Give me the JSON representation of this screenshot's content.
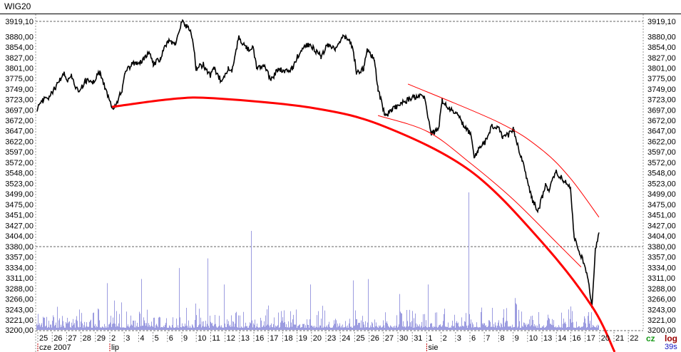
{
  "chart_data": {
    "type": "line",
    "title": "WIG20",
    "scale": "log",
    "ylim": [
      3200.0,
      3919.1
    ],
    "y_tick_labels": [
      "3919,10",
      "3880,00",
      "3854,00",
      "3827,00",
      "3801,00",
      "3775,00",
      "3749,00",
      "3723,00",
      "3697,00",
      "3672,00",
      "3647,00",
      "3622,00",
      "3597,00",
      "3572,00",
      "3548,00",
      "3523,00",
      "3499,00",
      "3475,00",
      "3451,00",
      "3427,00",
      "3404,00",
      "3380,00",
      "3357,00",
      "3334,00",
      "3311,00",
      "3288,00",
      "3266,00",
      "3243,00",
      "3221,00",
      "3200,00"
    ],
    "y_tick_values": [
      3919.1,
      3880,
      3854,
      3827,
      3801,
      3775,
      3749,
      3723,
      3697,
      3672,
      3647,
      3622,
      3597,
      3572,
      3548,
      3523,
      3499,
      3475,
      3451,
      3427,
      3404,
      3380,
      3357,
      3334,
      3311,
      3288,
      3266,
      3243,
      3221,
      3200
    ],
    "reference_lines": [
      3919.1,
      3380
    ],
    "x_day_labels": [
      "25",
      "26",
      "27",
      "28",
      "29",
      "2",
      "3",
      "4",
      "5",
      "6",
      "9",
      "10",
      "11",
      "12",
      "13",
      "16",
      "17",
      "18",
      "19",
      "20",
      "23",
      "24",
      "25",
      "26",
      "27",
      "30",
      "31",
      "1",
      "2",
      "3",
      "6",
      "7",
      "8",
      "9",
      "10",
      "13",
      "14",
      "16",
      "17",
      "20",
      "21",
      "22"
    ],
    "x_month_labels": [
      {
        "day_index": 0,
        "label": "cze 2007"
      },
      {
        "day_index": 5,
        "label": "lip"
      },
      {
        "day_index": 27,
        "label": "sie"
      }
    ],
    "price_series": [
      [
        -0.25,
        3700
      ],
      [
        0.15,
        3720
      ],
      [
        0.64,
        3730
      ],
      [
        1.14,
        3760
      ],
      [
        1.63,
        3790
      ],
      [
        1.88,
        3770
      ],
      [
        2.13,
        3780
      ],
      [
        2.62,
        3740
      ],
      [
        3.12,
        3770
      ],
      [
        3.61,
        3765
      ],
      [
        4.11,
        3790
      ],
      [
        4.6,
        3740
      ],
      [
        4.95,
        3700
      ],
      [
        5.35,
        3720
      ],
      [
        5.69,
        3750
      ],
      [
        5.84,
        3790
      ],
      [
        6.34,
        3810
      ],
      [
        7.08,
        3820
      ],
      [
        7.57,
        3840
      ],
      [
        7.82,
        3810
      ],
      [
        8.32,
        3825
      ],
      [
        8.81,
        3870
      ],
      [
        9.31,
        3860
      ],
      [
        9.8,
        3919
      ],
      [
        10.3,
        3900
      ],
      [
        10.54,
        3880
      ],
      [
        10.79,
        3800
      ],
      [
        11.29,
        3810
      ],
      [
        11.78,
        3780
      ],
      [
        12.03,
        3800
      ],
      [
        12.52,
        3770
      ],
      [
        13.02,
        3800
      ],
      [
        13.27,
        3790
      ],
      [
        13.76,
        3880
      ],
      [
        14.26,
        3850
      ],
      [
        14.75,
        3850
      ],
      [
        15.0,
        3800
      ],
      [
        15.5,
        3810
      ],
      [
        15.99,
        3770
      ],
      [
        16.49,
        3800
      ],
      [
        16.98,
        3790
      ],
      [
        17.48,
        3800
      ],
      [
        17.97,
        3840
      ],
      [
        18.47,
        3860
      ],
      [
        18.96,
        3850
      ],
      [
        19.46,
        3830
      ],
      [
        19.95,
        3860
      ],
      [
        20.45,
        3850
      ],
      [
        20.94,
        3880
      ],
      [
        21.44,
        3870
      ],
      [
        21.68,
        3850
      ],
      [
        21.93,
        3790
      ],
      [
        22.43,
        3800
      ],
      [
        22.67,
        3850
      ],
      [
        23.17,
        3820
      ],
      [
        23.42,
        3750
      ],
      [
        23.91,
        3680
      ],
      [
        24.41,
        3700
      ],
      [
        24.9,
        3710
      ],
      [
        25.4,
        3720
      ],
      [
        25.89,
        3730
      ],
      [
        26.63,
        3730
      ],
      [
        27.13,
        3640
      ],
      [
        27.62,
        3650
      ],
      [
        27.87,
        3720
      ],
      [
        28.37,
        3700
      ],
      [
        28.86,
        3690
      ],
      [
        29.36,
        3660
      ],
      [
        29.85,
        3640
      ],
      [
        30.1,
        3580
      ],
      [
        30.35,
        3600
      ],
      [
        30.84,
        3620
      ],
      [
        31.34,
        3660
      ],
      [
        31.83,
        3650
      ],
      [
        32.08,
        3630
      ],
      [
        32.57,
        3640
      ],
      [
        32.82,
        3650
      ],
      [
        33.32,
        3590
      ],
      [
        33.81,
        3530
      ],
      [
        34.06,
        3490
      ],
      [
        34.55,
        3460
      ],
      [
        35.05,
        3520
      ],
      [
        35.3,
        3510
      ],
      [
        35.79,
        3550
      ],
      [
        36.29,
        3530
      ],
      [
        36.78,
        3515
      ],
      [
        37.03,
        3400
      ],
      [
        37.52,
        3360
      ],
      [
        38.02,
        3310
      ],
      [
        38.27,
        3250
      ],
      [
        38.51,
        3370
      ],
      [
        38.76,
        3410
      ]
    ],
    "trend_curves": [
      {
        "name": "main-trend",
        "points": [
          [
            4.95,
            3705
          ],
          [
            9.06,
            3724
          ],
          [
            12.03,
            3726
          ],
          [
            18.96,
            3702
          ],
          [
            23.91,
            3657
          ],
          [
            29.85,
            3552
          ],
          [
            34.8,
            3390
          ],
          [
            38.27,
            3250
          ],
          [
            39.85,
            3154
          ]
        ]
      },
      {
        "name": "channel-upper",
        "points": [
          [
            25.5,
            3761
          ],
          [
            31.83,
            3667
          ],
          [
            34.8,
            3602
          ],
          [
            36.78,
            3535
          ],
          [
            38.76,
            3446
          ]
        ]
      },
      {
        "name": "channel-lower",
        "points": [
          [
            23.42,
            3684
          ],
          [
            26.88,
            3645
          ],
          [
            29.85,
            3570
          ],
          [
            32.82,
            3486
          ],
          [
            35.79,
            3390
          ],
          [
            37.52,
            3335
          ]
        ]
      }
    ],
    "volume_spikes_relative": [
      [
        4.6,
        0.34
      ],
      [
        5.6,
        0.2
      ],
      [
        9.6,
        0.45
      ],
      [
        11.6,
        0.52
      ],
      [
        12.7,
        0.33
      ],
      [
        14.6,
        0.72
      ],
      [
        18.7,
        0.33
      ],
      [
        21.7,
        0.36
      ],
      [
        22.7,
        0.37
      ],
      [
        26.9,
        0.33
      ],
      [
        29.7,
        1.0
      ]
    ],
    "colors": {
      "price": "#000000",
      "trend": "#ff0000",
      "volume": "#9c9ce0"
    },
    "status": {
      "mode": "cz",
      "scale_label": "log",
      "refresh": "39s"
    }
  }
}
